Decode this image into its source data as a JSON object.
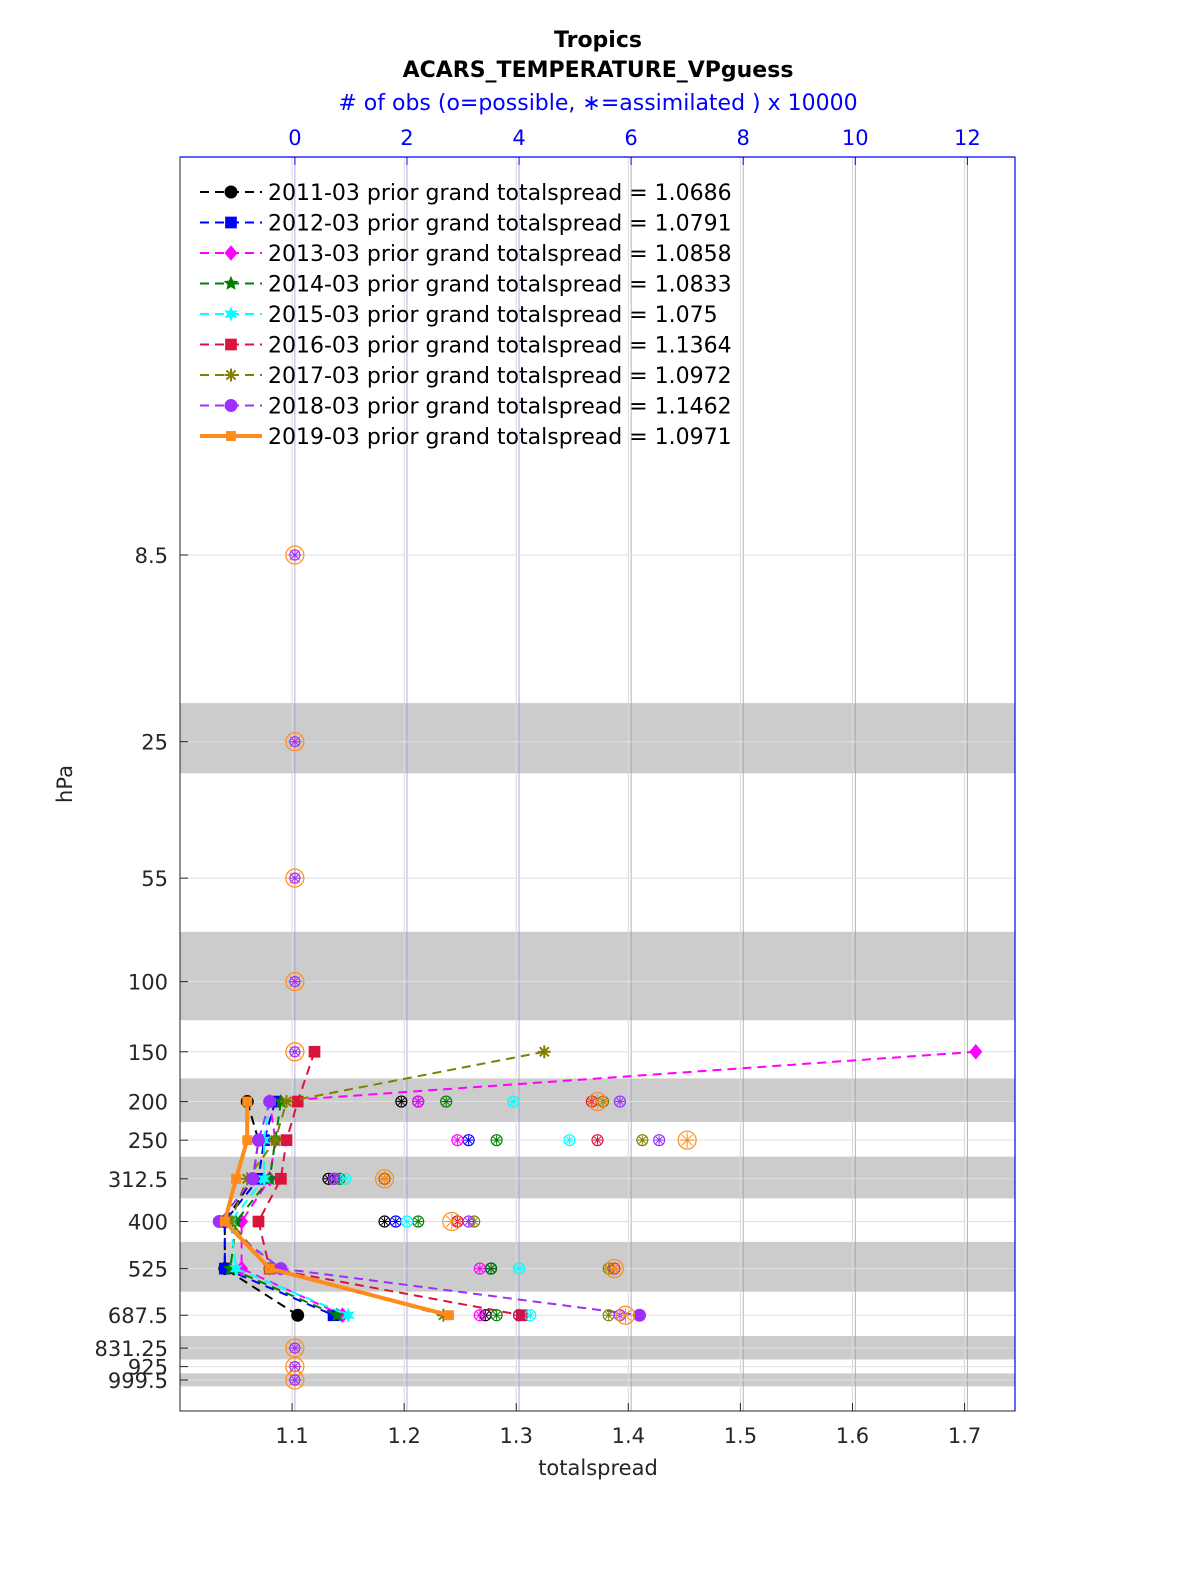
{
  "chart_data": {
    "type": "line",
    "title": "Tropics",
    "subtitle": "ACARS_TEMPERATURE_VPguess",
    "top_axis_label": "# of obs (o=possible, ∗=assimilated ) x 10000",
    "xlabel": "totalspread",
    "ylabel": "hPa",
    "xlim": [
      1.0,
      1.745
    ],
    "x_ticks": [
      "1.1",
      "1.2",
      "1.3",
      "1.4",
      "1.5",
      "1.6",
      "1.7"
    ],
    "top_xlim": [
      -2.05,
      12.85
    ],
    "top_ticks": [
      "0",
      "2",
      "4",
      "6",
      "8",
      "10",
      "12"
    ],
    "levels": [
      8.5,
      25,
      55,
      100,
      150,
      200,
      250,
      312.5,
      400,
      525,
      687.5,
      831.25,
      925,
      999.5
    ],
    "level_labels": [
      "8.5",
      "25",
      "55",
      "100",
      "150",
      "200",
      "250",
      "312.5",
      "400",
      "525",
      "687.5",
      "831.25",
      "925",
      "999.5"
    ],
    "shaded_bands": [
      [
        20,
        30
      ],
      [
        75,
        125
      ],
      [
        175,
        225
      ],
      [
        275,
        350
      ],
      [
        450,
        600
      ],
      [
        775,
        887.5
      ],
      [
        962,
        1037
      ]
    ],
    "legend_position": "top-left",
    "series": [
      {
        "name": "2011-03 prior grand totalspread = 1.0686",
        "color": "#000000",
        "style": "dashed",
        "marker": "circle",
        "levels": [
          200,
          250,
          312.5,
          400,
          525,
          687.5
        ],
        "values": [
          1.06,
          1.07,
          1.065,
          1.04,
          1.04,
          1.105
        ],
        "obs_levels": [
          200,
          312.5,
          400,
          525,
          687.5
        ],
        "obs_counts": [
          1.9,
          0.6,
          1.6,
          3.5,
          3.4
        ]
      },
      {
        "name": "2012-03 prior grand totalspread = 1.0791",
        "color": "#0000ff",
        "style": "dashed",
        "marker": "square",
        "levels": [
          200,
          250,
          312.5,
          400,
          525,
          687.5
        ],
        "values": [
          1.085,
          1.075,
          1.07,
          1.04,
          1.04,
          1.137
        ],
        "obs_levels": [
          200,
          250,
          312.5,
          400,
          525,
          687.5
        ],
        "obs_counts": [
          2.2,
          3.1,
          0.7,
          1.8,
          3.5,
          4.0
        ]
      },
      {
        "name": "2013-03 prior grand totalspread = 1.0858",
        "color": "#ff00ff",
        "style": "dashed",
        "marker": "diamond",
        "levels": [
          150,
          200,
          250,
          312.5,
          400,
          525,
          687.5
        ],
        "values": [
          1.71,
          1.08,
          1.085,
          1.08,
          1.055,
          1.055,
          1.145
        ],
        "obs_levels": [
          200,
          250,
          312.5,
          400,
          525,
          687.5
        ],
        "obs_counts": [
          2.2,
          2.9,
          0.7,
          2.9,
          3.3,
          3.3
        ]
      },
      {
        "name": "2014-03 prior grand totalspread = 1.0833",
        "color": "#008000",
        "style": "dashed",
        "marker": "star",
        "levels": [
          200,
          250,
          312.5,
          400,
          525,
          687.5
        ],
        "values": [
          1.09,
          1.085,
          1.08,
          1.05,
          1.045,
          1.14
        ],
        "obs_levels": [
          200,
          250,
          312.5,
          400,
          525,
          687.5
        ],
        "obs_counts": [
          2.7,
          3.6,
          0.8,
          2.2,
          3.5,
          3.6
        ]
      },
      {
        "name": "2015-03 prior grand totalspread = 1.075",
        "color": "#00ffff",
        "style": "dashed",
        "marker": "hexagram",
        "levels": [
          200,
          250,
          312.5,
          400,
          525,
          687.5
        ],
        "values": [
          1.08,
          1.075,
          1.075,
          1.045,
          1.05,
          1.15
        ],
        "obs_levels": [
          200,
          250,
          312.5,
          400,
          525,
          687.5
        ],
        "obs_counts": [
          3.9,
          4.9,
          0.9,
          2.0,
          4.0,
          4.2
        ]
      },
      {
        "name": "2016-03 prior grand totalspread = 1.1364",
        "color": "#dc143c",
        "style": "dashed",
        "marker": "square",
        "levels": [
          150,
          200,
          250,
          312.5,
          400,
          525,
          687.5
        ],
        "values": [
          1.12,
          1.105,
          1.095,
          1.09,
          1.07,
          1.08,
          1.305
        ],
        "obs_levels": [
          200,
          250,
          312.5,
          400,
          525,
          687.5
        ],
        "obs_counts": [
          5.3,
          5.4,
          1.6,
          2.9,
          5.7,
          4.0
        ]
      },
      {
        "name": "2017-03 prior grand totalspread = 1.0972",
        "color": "#808000",
        "style": "dashed",
        "marker": "asterisk",
        "levels": [
          150,
          200,
          250,
          312.5,
          400,
          525,
          687.5
        ],
        "values": [
          1.325,
          1.095,
          1.085,
          1.06,
          1.045,
          1.08,
          1.235
        ],
        "obs_levels": [
          200,
          250,
          312.5,
          400,
          525,
          687.5
        ],
        "obs_counts": [
          5.5,
          6.2,
          1.6,
          3.2,
          5.6,
          5.6
        ]
      },
      {
        "name": "2018-03 prior grand totalspread = 1.1462",
        "color": "#9b30ff",
        "style": "dashed",
        "marker": "circle",
        "levels": [
          200,
          250,
          312.5,
          400,
          525,
          687.5
        ],
        "values": [
          1.08,
          1.07,
          1.065,
          1.035,
          1.09,
          1.41
        ],
        "obs_levels": [
          200,
          250,
          312.5,
          400,
          525,
          687.5
        ],
        "obs_counts": [
          5.8,
          6.5,
          0.7,
          3.1,
          5.7,
          5.8
        ]
      },
      {
        "name": "2019-03 prior grand totalspread = 1.0971",
        "color": "#ff8c1a",
        "style": "solid",
        "marker": "square",
        "levels": [
          200,
          250,
          312.5,
          400,
          525,
          687.5
        ],
        "values": [
          1.06,
          1.06,
          1.05,
          1.04,
          1.08,
          1.24
        ],
        "obs_levels": [
          200,
          250,
          312.5,
          400,
          525,
          687.5
        ],
        "obs_counts": [
          5.4,
          7.0,
          1.6,
          2.8,
          5.7,
          5.9
        ]
      }
    ],
    "zero_obs_levels": [
      8.5,
      25,
      55,
      100,
      150,
      831.25,
      925,
      999.5
    ]
  }
}
